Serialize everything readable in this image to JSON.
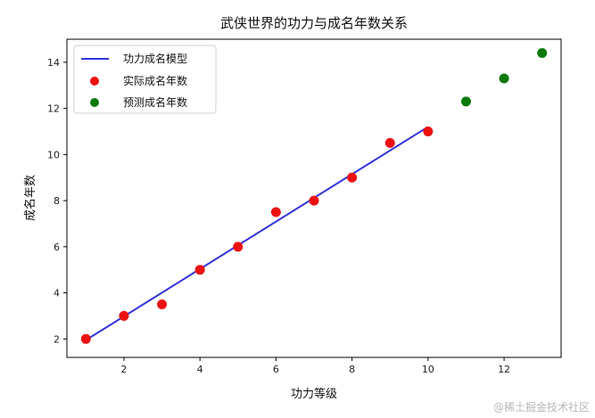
{
  "chart_data": {
    "type": "scatter",
    "title": "武侠世界的功力与成名年数关系",
    "xlabel": "功力等级",
    "ylabel": "成名年数",
    "xlim": [
      0.5,
      13.5
    ],
    "ylim": [
      1.2,
      15.0
    ],
    "xticks": [
      2,
      4,
      6,
      8,
      10,
      12
    ],
    "yticks": [
      2,
      4,
      6,
      8,
      10,
      12,
      14
    ],
    "grid": false,
    "legend_position": "top-left",
    "series": [
      {
        "name": "功力成名模型",
        "kind": "line",
        "color": "#3333dd",
        "x": [
          1,
          10
        ],
        "y": [
          1.95,
          11.2
        ]
      },
      {
        "name": "实际成名年数",
        "kind": "scatter",
        "color": "#ee1111",
        "x": [
          1,
          2,
          3,
          4,
          5,
          6,
          7,
          8,
          9,
          10
        ],
        "y": [
          2,
          3,
          3.5,
          5,
          6,
          7.5,
          8,
          9,
          10.5,
          11
        ]
      },
      {
        "name": "预测成名年数",
        "kind": "scatter",
        "color": "#0a7a0a",
        "x": [
          11,
          12,
          13
        ],
        "y": [
          12.3,
          13.3,
          14.4
        ]
      }
    ]
  },
  "watermark": "@稀土掘金技术社区"
}
